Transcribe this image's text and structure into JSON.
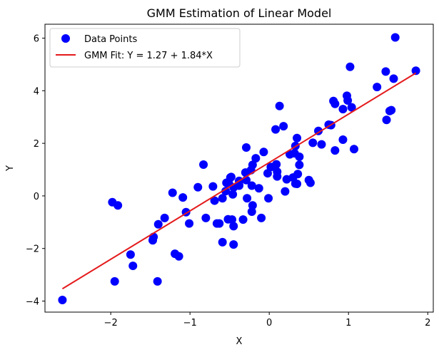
{
  "chart_data": {
    "type": "scatter",
    "title": "GMM Estimation of Linear Model",
    "xlabel": "X",
    "ylabel": "Y",
    "xlim": [
      -2.83,
      2.07
    ],
    "ylim": [
      -4.42,
      6.53
    ],
    "xticks": [
      -2,
      -1,
      0,
      1,
      2
    ],
    "yticks": [
      -4,
      -2,
      0,
      2,
      4,
      6
    ],
    "xtick_labels": [
      "−2",
      "−1",
      "0",
      "1",
      "2"
    ],
    "ytick_labels": [
      "−4",
      "−2",
      "0",
      "2",
      "4",
      "6"
    ],
    "grid": false,
    "legend": {
      "placement": "top-left",
      "entries": [
        "Data Points",
        "GMM Fit: Y = 1.27 + 1.84*X"
      ]
    },
    "colors": {
      "points": "#0000ff",
      "fit": "#e41a1c"
    },
    "fit": {
      "intercept": 1.27,
      "slope": 1.84,
      "x_range": [
        -2.61,
        1.85
      ]
    },
    "series": [
      {
        "name": "Data Points",
        "points": [
          [
            -2.61,
            -3.96
          ],
          [
            -1.98,
            -0.24
          ],
          [
            -1.91,
            -0.36
          ],
          [
            -1.95,
            -3.25
          ],
          [
            -1.41,
            -3.25
          ],
          [
            -1.75,
            -2.23
          ],
          [
            -1.72,
            -2.66
          ],
          [
            -1.47,
            -1.69
          ],
          [
            -1.46,
            -1.56
          ],
          [
            -1.4,
            -1.08
          ],
          [
            -1.32,
            -0.84
          ],
          [
            -1.19,
            -2.2
          ],
          [
            -1.14,
            -2.3
          ],
          [
            -1.22,
            0.12
          ],
          [
            -1.09,
            -0.06
          ],
          [
            -1.05,
            -0.62
          ],
          [
            -1.01,
            -1.05
          ],
          [
            -0.83,
            1.19
          ],
          [
            -0.9,
            0.33
          ],
          [
            -0.71,
            0.36
          ],
          [
            -0.69,
            -0.18
          ],
          [
            -0.8,
            -0.84
          ],
          [
            -0.66,
            -1.05
          ],
          [
            -0.63,
            -1.05
          ],
          [
            -0.59,
            -1.76
          ],
          [
            -0.45,
            -1.85
          ],
          [
            -0.59,
            -0.09
          ],
          [
            -0.46,
            0.06
          ],
          [
            -0.55,
            0.18
          ],
          [
            -0.49,
            0.7
          ],
          [
            -0.54,
            0.5
          ],
          [
            -0.51,
            0.48
          ],
          [
            -0.52,
            -0.89
          ],
          [
            -0.47,
            -0.9
          ],
          [
            -0.45,
            -1.15
          ],
          [
            -0.38,
            0.41
          ],
          [
            -0.33,
            -0.9
          ],
          [
            1.59,
            6.03
          ],
          [
            1.02,
            4.91
          ],
          [
            1.47,
            4.73
          ],
          [
            1.57,
            4.46
          ],
          [
            1.85,
            4.76
          ],
          [
            1.36,
            4.14
          ],
          [
            0.81,
            3.61
          ],
          [
            0.83,
            3.5
          ],
          [
            0.98,
            3.81
          ],
          [
            0.99,
            3.63
          ],
          [
            0.93,
            3.3
          ],
          [
            1.04,
            3.37
          ],
          [
            1.54,
            3.26
          ],
          [
            1.52,
            3.23
          ],
          [
            1.48,
            2.89
          ],
          [
            0.13,
            3.42
          ],
          [
            0.18,
            2.65
          ],
          [
            0.08,
            2.53
          ],
          [
            0.75,
            2.71
          ],
          [
            0.78,
            2.69
          ],
          [
            0.62,
            2.47
          ],
          [
            0.93,
            2.14
          ],
          [
            0.55,
            2.02
          ],
          [
            0.66,
            1.96
          ],
          [
            0.83,
            1.73
          ],
          [
            1.07,
            1.78
          ],
          [
            0.35,
            2.2
          ],
          [
            0.33,
            1.9
          ],
          [
            -0.29,
            1.84
          ],
          [
            -0.07,
            1.67
          ],
          [
            -0.17,
            1.43
          ],
          [
            -0.21,
            1.18
          ],
          [
            0.26,
            1.58
          ],
          [
            0.32,
            1.62
          ],
          [
            0.38,
            1.49
          ],
          [
            0.38,
            1.18
          ],
          [
            0.09,
            1.2
          ],
          [
            0.02,
            1.1
          ],
          [
            -0.02,
            0.86
          ],
          [
            0.1,
            0.92
          ],
          [
            0.1,
            0.74
          ],
          [
            -0.3,
            0.89
          ],
          [
            -0.23,
            0.98
          ],
          [
            -0.48,
            0.72
          ],
          [
            -0.38,
            0.57
          ],
          [
            -0.29,
            0.6
          ],
          [
            -0.38,
            0.39
          ],
          [
            -0.45,
            0.32
          ],
          [
            -0.22,
            0.39
          ],
          [
            -0.13,
            0.29
          ],
          [
            0.22,
            0.63
          ],
          [
            0.3,
            0.7
          ],
          [
            0.36,
            0.83
          ],
          [
            0.33,
            0.47
          ],
          [
            0.35,
            0.46
          ],
          [
            0.5,
            0.6
          ],
          [
            0.52,
            0.5
          ],
          [
            0.2,
            0.17
          ],
          [
            -0.01,
            -0.09
          ],
          [
            -0.28,
            -0.09
          ],
          [
            -0.21,
            -0.36
          ],
          [
            -0.22,
            -0.6
          ],
          [
            -0.1,
            -0.84
          ]
        ]
      }
    ]
  }
}
